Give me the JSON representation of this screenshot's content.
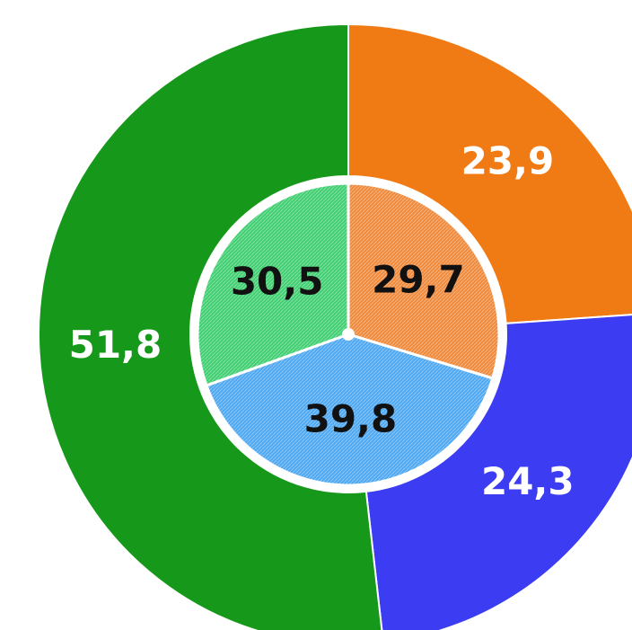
{
  "chart_data": [
    {
      "type": "donut",
      "values": [
        23.9,
        24.3,
        51.8
      ],
      "value_labels": [
        "23,9",
        "24,3",
        "51,8"
      ],
      "colors": [
        "#f07a14",
        "#3c3cf2",
        "#16991a"
      ],
      "label_color": "#ffffff"
    },
    {
      "type": "pie",
      "values": [
        29.7,
        39.8,
        30.5
      ],
      "value_labels": [
        "29,7",
        "39,8",
        "30,5"
      ],
      "colors": [
        "#f08a3c",
        "#4ea8f2",
        "#41cf72"
      ],
      "label_color": "#111111"
    }
  ]
}
